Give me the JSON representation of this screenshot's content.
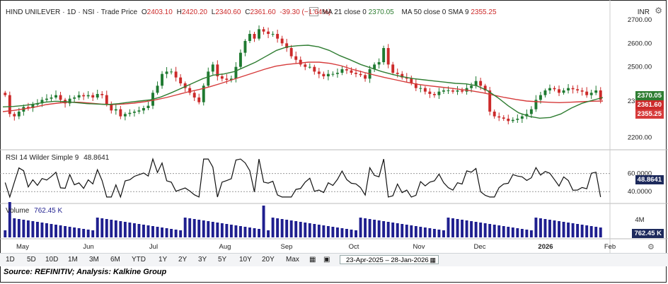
{
  "header": {
    "symbol": "HIND UNILEVER",
    "sep1": "·",
    "interval": "1D",
    "sep2": "·",
    "exchange": "NSI",
    "sep3": "·",
    "type": "Trade Price",
    "o_label": "O",
    "o_value": "2403.10",
    "h_label": "H",
    "h_value": "2420.20",
    "l_label": "L",
    "l_value": "2340.60",
    "c_label": "C",
    "c_value": "2361.60",
    "change": "-39.30 (−1.64%)",
    "ma21_label": "MA 21 close 0",
    "ma21_value": "2370.05",
    "ma50_label": "MA 50 close 0 SMA 9",
    "ma50_value": "2355.25",
    "currency": "INR"
  },
  "rsi_header": {
    "label": "RSI 14 Wilder Simple 9",
    "value": "48.8641"
  },
  "volume_header": {
    "label": "Volume",
    "value": "762.45 K"
  },
  "price_axis": [
    "2700.00",
    "2600.00",
    "2500.00",
    "2354.86",
    "2200.00"
  ],
  "price_badges": {
    "ma21": "2370.05",
    "close": "2361.60",
    "ma50": "2355.25"
  },
  "rsi_axis": [
    "60.0000",
    "40.0000"
  ],
  "rsi_badge": "48.8641",
  "volume_axis": "4M",
  "volume_badge": "762.45 K",
  "time_axis": [
    "May",
    "Jun",
    "Jul",
    "Aug",
    "Sep",
    "Oct",
    "Nov",
    "Dec",
    "2026",
    "Feb"
  ],
  "toolbar": {
    "ranges": [
      "1D",
      "5D",
      "10D",
      "1M",
      "3M",
      "6M",
      "YTD",
      "1Y",
      "2Y",
      "3Y",
      "5Y",
      "10Y",
      "20Y",
      "Max"
    ],
    "date_range": "23-Apr-2025  –  28-Jan-2026"
  },
  "footer": "Source: REFINITIV; Analysis: Kalkine Group",
  "colors": {
    "up": "#1f7a31",
    "down": "#cc2a2a",
    "ma21": "#2f7d32",
    "ma50": "#d63a3a",
    "volume": "#1f1f8f",
    "rsi": "#111111"
  },
  "chart_data": {
    "type": "line",
    "title": "HIND UNILEVER · 1D · NSI · Trade Price",
    "xlabel": "",
    "ylabel": "INR",
    "ylim": [
      2160,
      2760
    ],
    "x_ticks": [
      "May",
      "Jun",
      "Jul",
      "Aug",
      "Sep",
      "Oct",
      "Nov",
      "Dec",
      "2026",
      "Feb"
    ],
    "series": [
      {
        "name": "Trade Price",
        "values": [
          2380,
          2300,
          2290,
          2310,
          2330,
          2325,
          2340,
          2345,
          2360,
          2365,
          2370,
          2380,
          2360,
          2345,
          2365,
          2370,
          2380,
          2375,
          2380,
          2370,
          2385,
          2380,
          2340,
          2315,
          2320,
          2290,
          2300,
          2305,
          2310,
          2315,
          2325,
          2335,
          2390,
          2420,
          2470,
          2480,
          2480,
          2455,
          2430,
          2410,
          2390,
          2370,
          2350,
          2420,
          2480,
          2510,
          2460,
          2450,
          2445,
          2450,
          2500,
          2560,
          2610,
          2640,
          2620,
          2660,
          2650,
          2640,
          2640,
          2620,
          2600,
          2580,
          2545,
          2530,
          2510,
          2500,
          2500,
          2480,
          2470,
          2460,
          2470,
          2470,
          2475,
          2490,
          2485,
          2475,
          2470,
          2465,
          2450,
          2490,
          2510,
          2520,
          2580,
          2510,
          2475,
          2470,
          2455,
          2450,
          2430,
          2410,
          2410,
          2395,
          2385,
          2380,
          2395,
          2400,
          2400,
          2395,
          2400,
          2395,
          2410,
          2420,
          2440,
          2420,
          2400,
          2310,
          2290,
          2285,
          2280,
          2270,
          2275,
          2280,
          2290,
          2300,
          2320,
          2360,
          2380,
          2400,
          2410,
          2405,
          2390,
          2400,
          2410,
          2405,
          2400,
          2395,
          2380,
          2390,
          2400,
          2360
        ]
      },
      {
        "name": "MA 21 close 0",
        "values": [
          2330,
          2332,
          2336,
          2342,
          2350,
          2354,
          2352,
          2348,
          2344,
          2342,
          2340,
          2344,
          2350,
          2355,
          2360,
          2372,
          2390,
          2410,
          2430,
          2450,
          2465,
          2470,
          2480,
          2500,
          2520,
          2545,
          2570,
          2585,
          2590,
          2592,
          2585,
          2570,
          2548,
          2530,
          2510,
          2495,
          2480,
          2468,
          2458,
          2450,
          2445,
          2440,
          2435,
          2430,
          2428,
          2420,
          2400,
          2370,
          2335,
          2305,
          2290,
          2282,
          2285,
          2300,
          2325,
          2345,
          2358,
          2370
        ]
      },
      {
        "name": "MA 50 close 0 SMA 9",
        "values": [
          2310,
          2315,
          2322,
          2330,
          2340,
          2346,
          2350,
          2350,
          2346,
          2342,
          2340,
          2342,
          2346,
          2352,
          2360,
          2370,
          2382,
          2394,
          2404,
          2416,
          2430,
          2445,
          2460,
          2475,
          2490,
          2503,
          2510,
          2515,
          2520,
          2520,
          2515,
          2505,
          2490,
          2478,
          2466,
          2455,
          2445,
          2435,
          2426,
          2420,
          2415,
          2410,
          2404,
          2398,
          2390,
          2380,
          2370,
          2362,
          2355,
          2352,
          2350,
          2348,
          2350,
          2352,
          2354,
          2355
        ]
      }
    ],
    "rsi": {
      "name": "RSI 14 Wilder Simple 9",
      "ylim": [
        30,
        80
      ],
      "ticks": [
        60,
        40
      ],
      "last": 48.8641
    },
    "volume": {
      "name": "Volume",
      "tick": "4M",
      "last": "762.45 K"
    }
  }
}
